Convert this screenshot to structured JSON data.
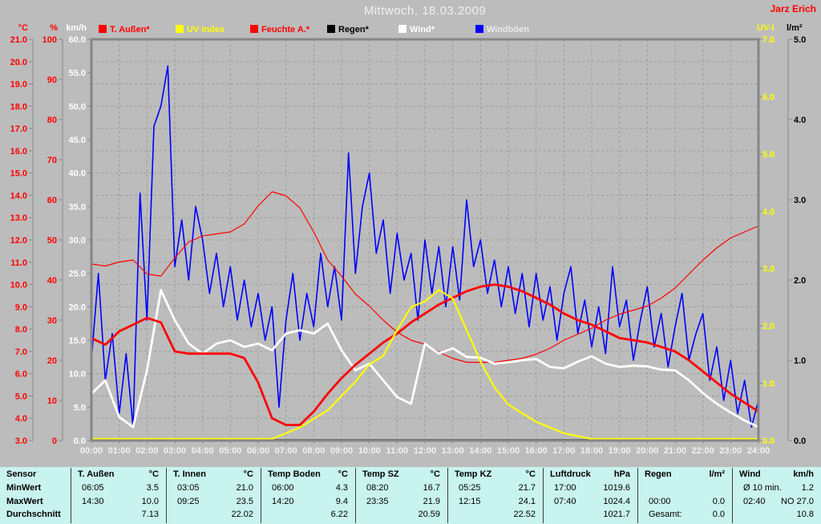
{
  "header": {
    "title": "Mittwoch, 18.03.2009",
    "title_color": "#f0f0f0",
    "watermark": "Jarz Erich",
    "watermark_color": "#ff0000"
  },
  "legend": [
    {
      "label": "T. Außen*",
      "swatch": "#ff0000",
      "text_color": "#ff0000"
    },
    {
      "label": "UV Index",
      "swatch": "#ffff00",
      "text_color": "#ffff00"
    },
    {
      "label": "Feuchte A.*",
      "swatch": "#ff0000",
      "text_color": "#ff0000"
    },
    {
      "label": "Regen*",
      "swatch": "#000000",
      "text_color": "#000000"
    },
    {
      "label": "Wind*",
      "swatch": "#ffffff",
      "text_color": "#ffffff"
    },
    {
      "label": "Windböen",
      "swatch": "#0000ff",
      "text_color": "#e9e9e9"
    }
  ],
  "axes": {
    "left": [
      {
        "unit": "°C",
        "color": "#ff0000",
        "min": 3.0,
        "max": 21.0,
        "step": 1.0,
        "labels": [
          "21.0",
          "20.0",
          "19.0",
          "18.0",
          "17.0",
          "16.0",
          "15.0",
          "14.0",
          "13.0",
          "12.0",
          "11.0",
          "10.0",
          "9.0",
          "8.0",
          "7.0",
          "6.0",
          "5.0",
          "4.0",
          "3.0"
        ]
      },
      {
        "unit": "%",
        "color": "#ff0000",
        "min": 0,
        "max": 100,
        "step": 10,
        "labels": [
          "100",
          "90",
          "80",
          "70",
          "60",
          "50",
          "40",
          "30",
          "20",
          "10",
          "0"
        ]
      },
      {
        "unit": "km/h",
        "color": "#ffffff",
        "min": 0.0,
        "max": 60.0,
        "step": 5.0,
        "labels": [
          "60.0",
          "55.0",
          "50.0",
          "45.0",
          "40.0",
          "35.0",
          "30.0",
          "25.0",
          "20.0",
          "15.0",
          "10.0",
          "5.0",
          "0.0"
        ]
      }
    ],
    "right": [
      {
        "unit": "UV-I",
        "color": "#ffff00",
        "min": 0.0,
        "max": 7.0,
        "step": 1.0,
        "labels": [
          "7.0",
          "6.0",
          "5.0",
          "4.0",
          "3.0",
          "2.0",
          "1.0",
          "0.0"
        ]
      },
      {
        "unit": "l/m²",
        "color": "#000000",
        "min": 0.0,
        "max": 5.0,
        "step": 1.0,
        "labels": [
          "5.0",
          "4.0",
          "3.0",
          "2.0",
          "1.0",
          "0.0"
        ]
      }
    ],
    "x": {
      "color": "#f2f2f2",
      "labels": [
        "00:00",
        "01:00",
        "02:00",
        "03:00",
        "04:00",
        "05:00",
        "06:00",
        "07:00",
        "08:00",
        "09:00",
        "10:00",
        "11:00",
        "12:00",
        "13:00",
        "14:00",
        "15:00",
        "16:00",
        "17:00",
        "18:00",
        "19:00",
        "20:00",
        "21:00",
        "22:00",
        "23:00",
        "24:00"
      ]
    }
  },
  "chart_data": {
    "type": "line",
    "title": "Mittwoch, 18.03.2009",
    "x_unit": "hour",
    "x_range": [
      0,
      24
    ],
    "grid": "dashed, hourly vertical, 18 horizontal rows",
    "series": [
      {
        "name": "T. Außen*",
        "color": "#ff0000",
        "width": 2.8,
        "axis": "°C",
        "axis_range": [
          3,
          21
        ],
        "x_step_h": 0.5,
        "values": [
          7.6,
          7.3,
          7.9,
          8.2,
          8.5,
          8.3,
          7.0,
          6.9,
          6.9,
          6.9,
          6.9,
          6.7,
          5.6,
          4.0,
          3.7,
          3.7,
          4.3,
          5.1,
          5.8,
          6.4,
          6.9,
          7.4,
          7.8,
          8.3,
          8.7,
          9.1,
          9.4,
          9.7,
          9.9,
          10.0,
          9.9,
          9.7,
          9.4,
          9.1,
          8.7,
          8.4,
          8.2,
          7.9,
          7.6,
          7.5,
          7.4,
          7.2,
          7.0,
          6.6,
          6.1,
          5.6,
          5.1,
          4.7,
          4.3
        ]
      },
      {
        "name": "UV Index",
        "color": "#ffff00",
        "width": 2.2,
        "axis": "UV-I",
        "axis_range": [
          0,
          7
        ],
        "x_step_h": 0.5,
        "values": [
          0,
          0,
          0,
          0,
          0,
          0,
          0,
          0,
          0,
          0,
          0,
          0,
          0,
          0,
          0.1,
          0.2,
          0.35,
          0.5,
          0.75,
          1.0,
          1.3,
          1.45,
          1.9,
          2.3,
          2.4,
          2.6,
          2.45,
          1.9,
          1.35,
          0.9,
          0.6,
          0.45,
          0.3,
          0.2,
          0.1,
          0.05,
          0,
          0,
          0,
          0,
          0,
          0,
          0,
          0,
          0,
          0,
          0,
          0,
          0
        ]
      },
      {
        "name": "Feuchte A.*",
        "color": "#ff0000",
        "width": 1.2,
        "axis": "%",
        "axis_range": [
          0,
          100
        ],
        "x_step_h": 0.5,
        "values": [
          44,
          43.5,
          44.5,
          45,
          41.5,
          41,
          45.5,
          49.5,
          51,
          51.5,
          52,
          54,
          58.5,
          62,
          61,
          58,
          52,
          45,
          41,
          36.5,
          33.5,
          30,
          27,
          25,
          24,
          22,
          20.5,
          19.5,
          19.5,
          19.5,
          20,
          20.5,
          21.5,
          23,
          25,
          26.5,
          28,
          30,
          31.5,
          32.5,
          33.5,
          35.5,
          38,
          41.5,
          45,
          48,
          50.5,
          52,
          53.5
        ]
      },
      {
        "name": "Regen*",
        "color": "#000000",
        "width": 1.4,
        "axis": "l/m²",
        "axis_range": [
          0,
          5
        ],
        "x_step_h": 24,
        "values": [
          0,
          0
        ]
      },
      {
        "name": "Wind*",
        "color": "#ffffff",
        "width": 2.8,
        "axis": "km/h",
        "axis_range": [
          0,
          60
        ],
        "x_step_h": 0.5,
        "values": [
          7,
          9,
          3.5,
          2,
          10.5,
          22.5,
          18,
          14.5,
          13,
          14.5,
          15,
          14,
          14.5,
          13.5,
          16,
          16.5,
          16,
          17.5,
          13.5,
          10.5,
          11.5,
          9,
          6.5,
          5.5,
          14.5,
          13,
          13.8,
          12.5,
          12.4,
          11.5,
          11.7,
          12,
          12.2,
          11,
          10.8,
          11.8,
          12.6,
          11.5,
          11,
          11.2,
          11.1,
          10.6,
          10.5,
          9,
          7.1,
          5.5,
          4.2,
          3,
          2
        ]
      },
      {
        "name": "Windböen",
        "color": "#0000ff",
        "width": 1.6,
        "axis": "km/h",
        "axis_range": [
          0,
          60
        ],
        "x_step_h": 0.25,
        "values": [
          12,
          25,
          9,
          16,
          4,
          13,
          2,
          37,
          18,
          47,
          50,
          56,
          26,
          33,
          24,
          35,
          30,
          22,
          28,
          20,
          26,
          18,
          24,
          17,
          22,
          15,
          20,
          5,
          18,
          25,
          15,
          22,
          17,
          28,
          20,
          26,
          18,
          43,
          25,
          35,
          40,
          28,
          33,
          22,
          31,
          24,
          28,
          18,
          30,
          22,
          29,
          20,
          29,
          21,
          36,
          26,
          30,
          22,
          27,
          20,
          26,
          19,
          25,
          17,
          25,
          18,
          23,
          15,
          22,
          26,
          16,
          21,
          14,
          20,
          13,
          26,
          17,
          21,
          12,
          18,
          23,
          14,
          19,
          11,
          17,
          22,
          12,
          16,
          19,
          9,
          14,
          6,
          12,
          4,
          9,
          2,
          6
        ]
      }
    ]
  },
  "table": {
    "row_headers": [
      "Sensor",
      "MinWert",
      "MaxWert",
      "Durchschnitt"
    ],
    "columns": [
      {
        "name": "T. Außen",
        "unit": "°C",
        "min_time": "06:05",
        "min": "3.5",
        "max_time": "14:30",
        "max": "10.0",
        "avg_label": "",
        "avg": "7.13"
      },
      {
        "name": "T. Innen",
        "unit": "°C",
        "min_time": "03:05",
        "min": "21.0",
        "max_time": "09:25",
        "max": "23.5",
        "avg_label": "",
        "avg": "22.02"
      },
      {
        "name": "Temp Boden",
        "unit": "°C",
        "min_time": "06:00",
        "min": "4.3",
        "max_time": "14:20",
        "max": "9.4",
        "avg_label": "",
        "avg": "6.22"
      },
      {
        "name": "Temp SZ",
        "unit": "°C",
        "min_time": "08:20",
        "min": "16.7",
        "max_time": "23:35",
        "max": "21.9",
        "avg_label": "",
        "avg": "20.59"
      },
      {
        "name": "Temp KZ",
        "unit": "°C",
        "min_time": "05:25",
        "min": "21.7",
        "max_time": "12:15",
        "max": "24.1",
        "avg_label": "",
        "avg": "22.52"
      },
      {
        "name": "Luftdruck",
        "unit": "hPa",
        "min_time": "17:00",
        "min": "1019.6",
        "max_time": "07:40",
        "max": "1024.4",
        "avg_label": "",
        "avg": "1021.7"
      },
      {
        "name": "Regen",
        "unit": "l/m²",
        "min_time": "",
        "min": "",
        "max_time": "00:00",
        "max": "0.0",
        "avg_label": "Gesamt:",
        "avg": "0.0"
      },
      {
        "name": "Wind",
        "unit": "km/h",
        "min_time": "Ø 10 min.",
        "min": "1.2",
        "max_time": "02:40",
        "max": "NO 27.0",
        "avg_label": "",
        "avg": "10.8"
      }
    ]
  }
}
